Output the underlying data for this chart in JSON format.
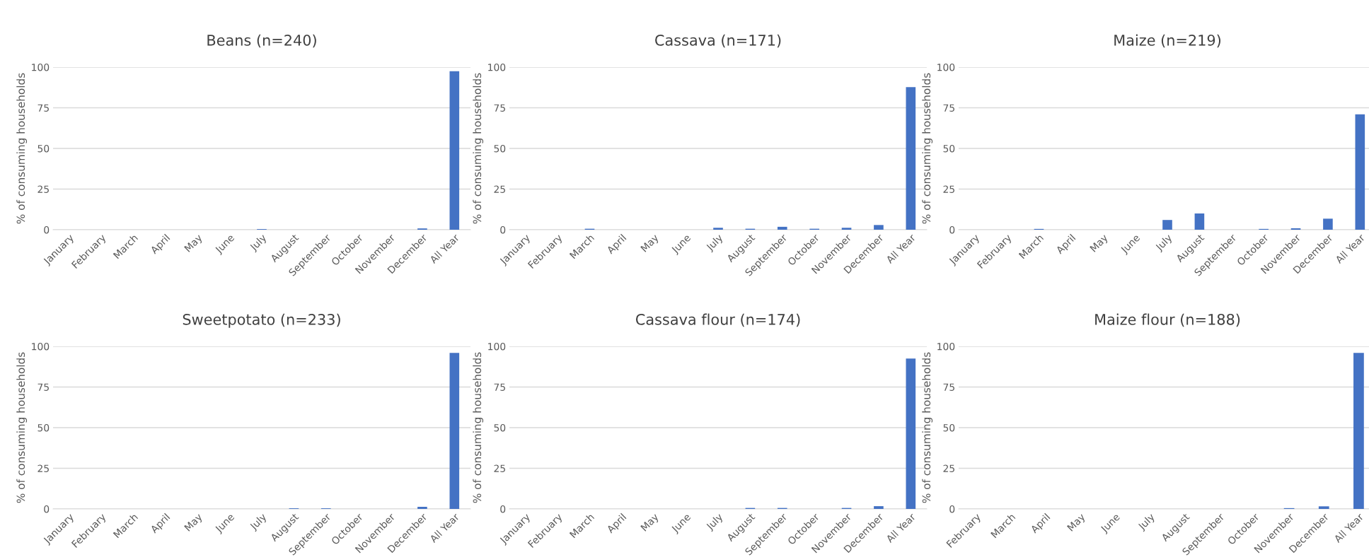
{
  "chart_data": [
    {
      "type": "bar",
      "title": "Beans (n=240)",
      "ylabel": "% of consuming households",
      "categories": [
        "January",
        "February",
        "March",
        "April",
        "May",
        "June",
        "July",
        "August",
        "September",
        "October",
        "November",
        "December",
        "All Year"
      ],
      "values": [
        0,
        0,
        0,
        0,
        0,
        0,
        0.4,
        0,
        0,
        0,
        0,
        0.8,
        97.5
      ],
      "color": "#4472c4",
      "ylim": [
        0,
        100
      ],
      "yticks": [
        0,
        25,
        50,
        75,
        100
      ],
      "grid": "y"
    },
    {
      "type": "bar",
      "title": "Cassava (n=171)",
      "ylabel": "% of consuming households",
      "categories": [
        "January",
        "February",
        "March",
        "April",
        "May",
        "June",
        "July",
        "August",
        "September",
        "October",
        "November",
        "December",
        "All Year"
      ],
      "values": [
        0,
        0,
        0.6,
        0,
        0,
        0,
        1.2,
        0.6,
        1.8,
        0.6,
        1.2,
        2.9,
        87.7
      ],
      "color": "#4472c4",
      "ylim": [
        0,
        100
      ],
      "yticks": [
        0,
        25,
        50,
        75,
        100
      ],
      "grid": "y"
    },
    {
      "type": "bar",
      "title": "Maize (n=219)",
      "ylabel": "% of consuming households",
      "categories": [
        "January",
        "February",
        "March",
        "April",
        "May",
        "June",
        "July",
        "August",
        "September",
        "October",
        "November",
        "December",
        "All Year"
      ],
      "values": [
        0,
        0,
        0.5,
        0,
        0,
        0,
        6,
        10,
        0,
        0.5,
        0.9,
        6.8,
        71
      ],
      "color": "#4472c4",
      "ylim": [
        0,
        100
      ],
      "yticks": [
        0,
        25,
        50,
        75,
        100
      ],
      "grid": "y"
    },
    {
      "type": "bar",
      "title": "Sweetpotato (n=233)",
      "ylabel": "% of consuming households",
      "categories": [
        "January",
        "February",
        "March",
        "April",
        "May",
        "June",
        "July",
        "August",
        "September",
        "October",
        "November",
        "December",
        "All Year"
      ],
      "values": [
        0,
        0,
        0,
        0,
        0,
        0,
        0,
        0.4,
        0.4,
        0,
        0,
        1.3,
        96
      ],
      "color": "#4472c4",
      "ylim": [
        0,
        100
      ],
      "yticks": [
        0,
        25,
        50,
        75,
        100
      ],
      "grid": "y"
    },
    {
      "type": "bar",
      "title": "Cassava flour (n=174)",
      "ylabel": "% of consuming households",
      "categories": [
        "January",
        "February",
        "March",
        "April",
        "May",
        "June",
        "July",
        "August",
        "September",
        "October",
        "November",
        "December",
        "All Year"
      ],
      "values": [
        0,
        0,
        0,
        0,
        0,
        0,
        0,
        0.6,
        0.6,
        0,
        0.6,
        1.7,
        92.5
      ],
      "color": "#4472c4",
      "ylim": [
        0,
        100
      ],
      "yticks": [
        0,
        25,
        50,
        75,
        100
      ],
      "grid": "y"
    },
    {
      "type": "bar",
      "title": "Maize flour (n=188)",
      "ylabel": "% of consuming households",
      "categories": [
        "February",
        "March",
        "April",
        "May",
        "June",
        "July",
        "August",
        "September",
        "October",
        "November",
        "December",
        "All Year"
      ],
      "values": [
        0,
        0,
        0,
        0,
        0,
        0,
        0,
        0,
        0,
        0.5,
        1.6,
        96
      ],
      "color": "#4472c4",
      "ylim": [
        0,
        100
      ],
      "yticks": [
        0,
        25,
        50,
        75,
        100
      ],
      "grid": "y"
    }
  ]
}
